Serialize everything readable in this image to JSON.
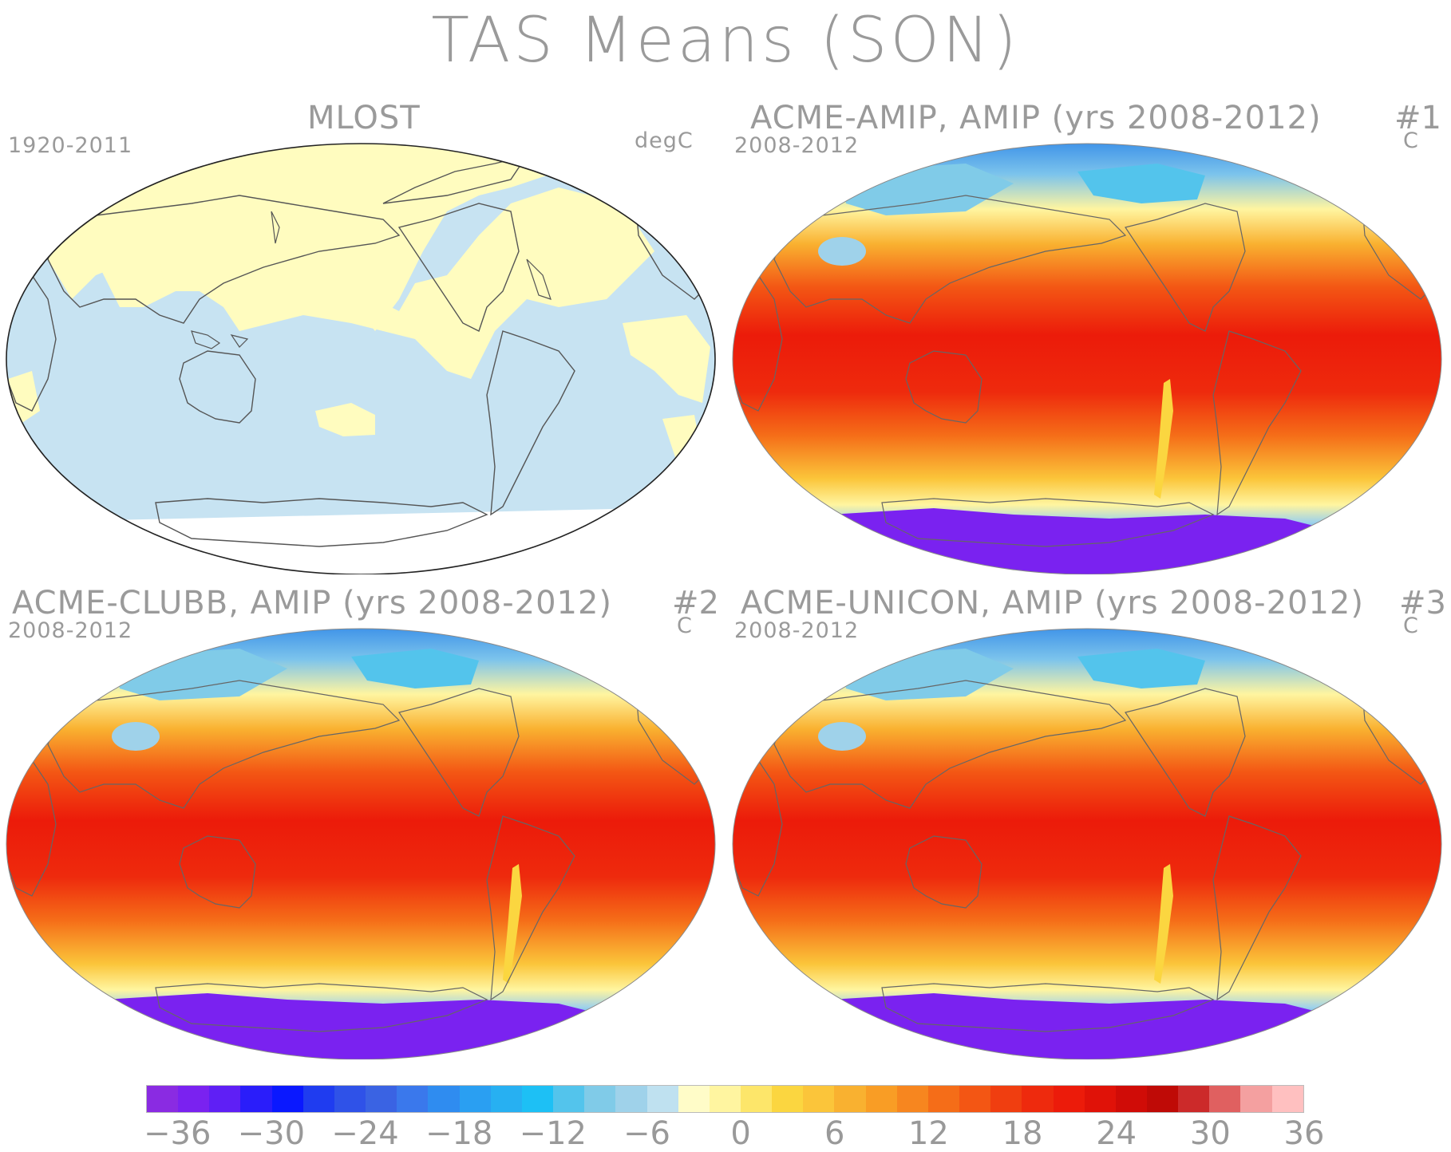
{
  "figure": {
    "title": "TAS Means (SON)"
  },
  "panels": [
    {
      "title": "MLOST",
      "period": "1920-2011",
      "units": "degC",
      "number": "",
      "type": "observations"
    },
    {
      "title": "ACME-AMIP, AMIP (yrs 2008-2012)",
      "period": "2008-2012",
      "units": "C",
      "number": "#1",
      "type": "model"
    },
    {
      "title": "ACME-CLUBB, AMIP (yrs 2008-2012)",
      "period": "2008-2012",
      "units": "C",
      "number": "#2",
      "type": "model"
    },
    {
      "title": "ACME-UNICON, AMIP (yrs 2008-2012)",
      "period": "2008-2012",
      "units": "C",
      "number": "#3",
      "type": "model"
    }
  ],
  "colorbar": {
    "tick_labels": [
      "-36",
      "-30",
      "-24",
      "-18",
      "-12",
      "-6",
      "0",
      "6",
      "12",
      "18",
      "24",
      "30",
      "36"
    ],
    "colors": [
      "#8a2be2",
      "#7a22f0",
      "#5f1ff5",
      "#2a1dfa",
      "#0a18ff",
      "#1f3cf0",
      "#2f52e8",
      "#3a63e3",
      "#3a78ec",
      "#2f8cf0",
      "#2a9ff2",
      "#27b0f2",
      "#1dc0f5",
      "#53c4ec",
      "#80cbe8",
      "#9fd2ea",
      "#bfe1f0",
      "#fffcc8",
      "#fff5a0",
      "#fde66a",
      "#fbd640",
      "#fbc53a",
      "#f9b130",
      "#f99d25",
      "#f7861f",
      "#f56d18",
      "#f35614",
      "#f03e10",
      "#ee2a0d",
      "#ec1b0a",
      "#e01208",
      "#d00c07",
      "#bf0a06",
      "#cc2a2a",
      "#e06060",
      "#f4a0a0",
      "#ffc0c0"
    ]
  }
}
